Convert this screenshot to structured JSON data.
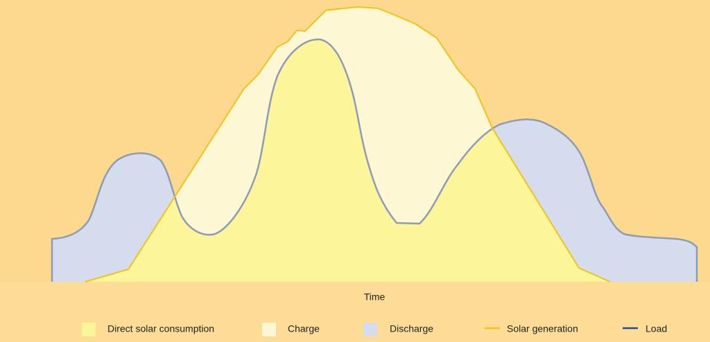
{
  "axis": {
    "x_label": "Time"
  },
  "legend": [
    {
      "label": "Direct solar consumption"
    },
    {
      "label": "Charge"
    },
    {
      "label": "Discharge"
    },
    {
      "label": "Solar generation"
    },
    {
      "label": "Load"
    }
  ]
}
